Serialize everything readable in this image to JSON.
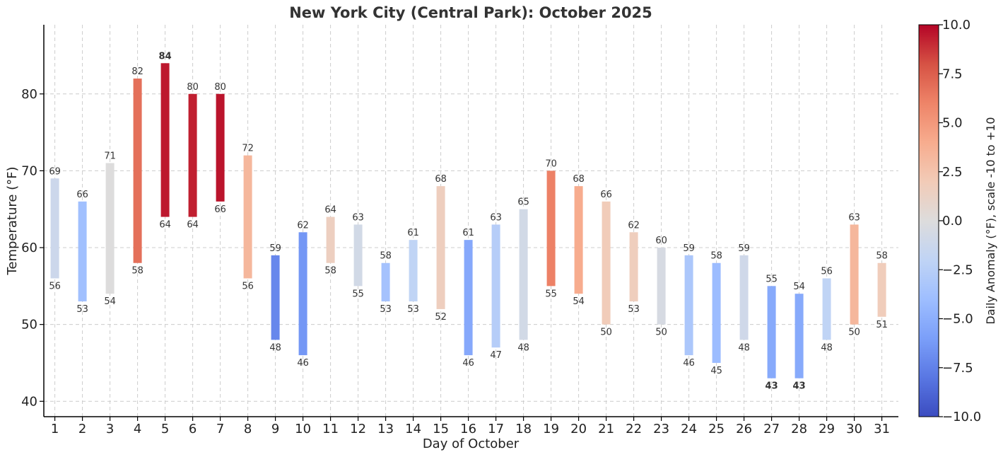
{
  "chart_data": {
    "type": "bar",
    "title": "New York City (Central Park): October 2025",
    "xlabel": "Day of October",
    "ylabel": "Temperature (°F)",
    "xlim": [
      0.6,
      31.6
    ],
    "ylim": [
      38,
      89
    ],
    "yticks": [
      40,
      50,
      60,
      70,
      80
    ],
    "grid": true,
    "days": [
      1,
      2,
      3,
      4,
      5,
      6,
      7,
      8,
      9,
      10,
      11,
      12,
      13,
      14,
      15,
      16,
      17,
      18,
      19,
      20,
      21,
      22,
      23,
      24,
      25,
      26,
      27,
      28,
      29,
      30,
      31
    ],
    "highs": [
      69,
      66,
      71,
      82,
      84,
      80,
      80,
      72,
      59,
      62,
      64,
      63,
      58,
      61,
      68,
      61,
      63,
      65,
      70,
      68,
      66,
      62,
      60,
      59,
      58,
      59,
      55,
      54,
      56,
      63,
      58
    ],
    "lows": [
      56,
      53,
      54,
      58,
      64,
      64,
      66,
      56,
      48,
      46,
      58,
      55,
      53,
      53,
      52,
      46,
      47,
      48,
      55,
      54,
      50,
      53,
      50,
      46,
      45,
      48,
      43,
      43,
      48,
      50,
      51
    ],
    "anomalies": [
      -1.2,
      -3.8,
      0.0,
      6.8,
      9.5,
      9.3,
      9.6,
      3.3,
      -7.2,
      -6.4,
      1.5,
      -0.8,
      -3.6,
      -2.0,
      1.6,
      -5.4,
      -2.6,
      -0.8,
      6.1,
      4.0,
      1.9,
      1.7,
      -0.5,
      -3.2,
      -4.1,
      -1.0,
      -5.3,
      -5.3,
      -2.0,
      3.3,
      1.8
    ],
    "highlight": {
      "max_high": {
        "day": 5,
        "value": 84,
        "color": "#ff0000"
      },
      "min_lows": [
        {
          "day": 27,
          "value": 43
        },
        {
          "day": 28,
          "value": 43
        }
      ],
      "min_color": "#00008b"
    },
    "colorbar": {
      "label": "Daily Anomaly (°F), scale -10 to +10",
      "range": [
        -10,
        10
      ],
      "ticks": [
        "-10.0",
        "-7.5",
        "-5.0",
        "-2.5",
        "0.0",
        "2.5",
        "5.0",
        "7.5",
        "10.0"
      ],
      "colormap": "coolwarm",
      "colors_low_to_high": [
        "#3b4cc0",
        "#5977e3",
        "#7b9ff9",
        "#9ebeff",
        "#c0d4f5",
        "#dddcdc",
        "#f2cbb7",
        "#f7ac8e",
        "#ee8468",
        "#d65244",
        "#b40426"
      ]
    }
  }
}
